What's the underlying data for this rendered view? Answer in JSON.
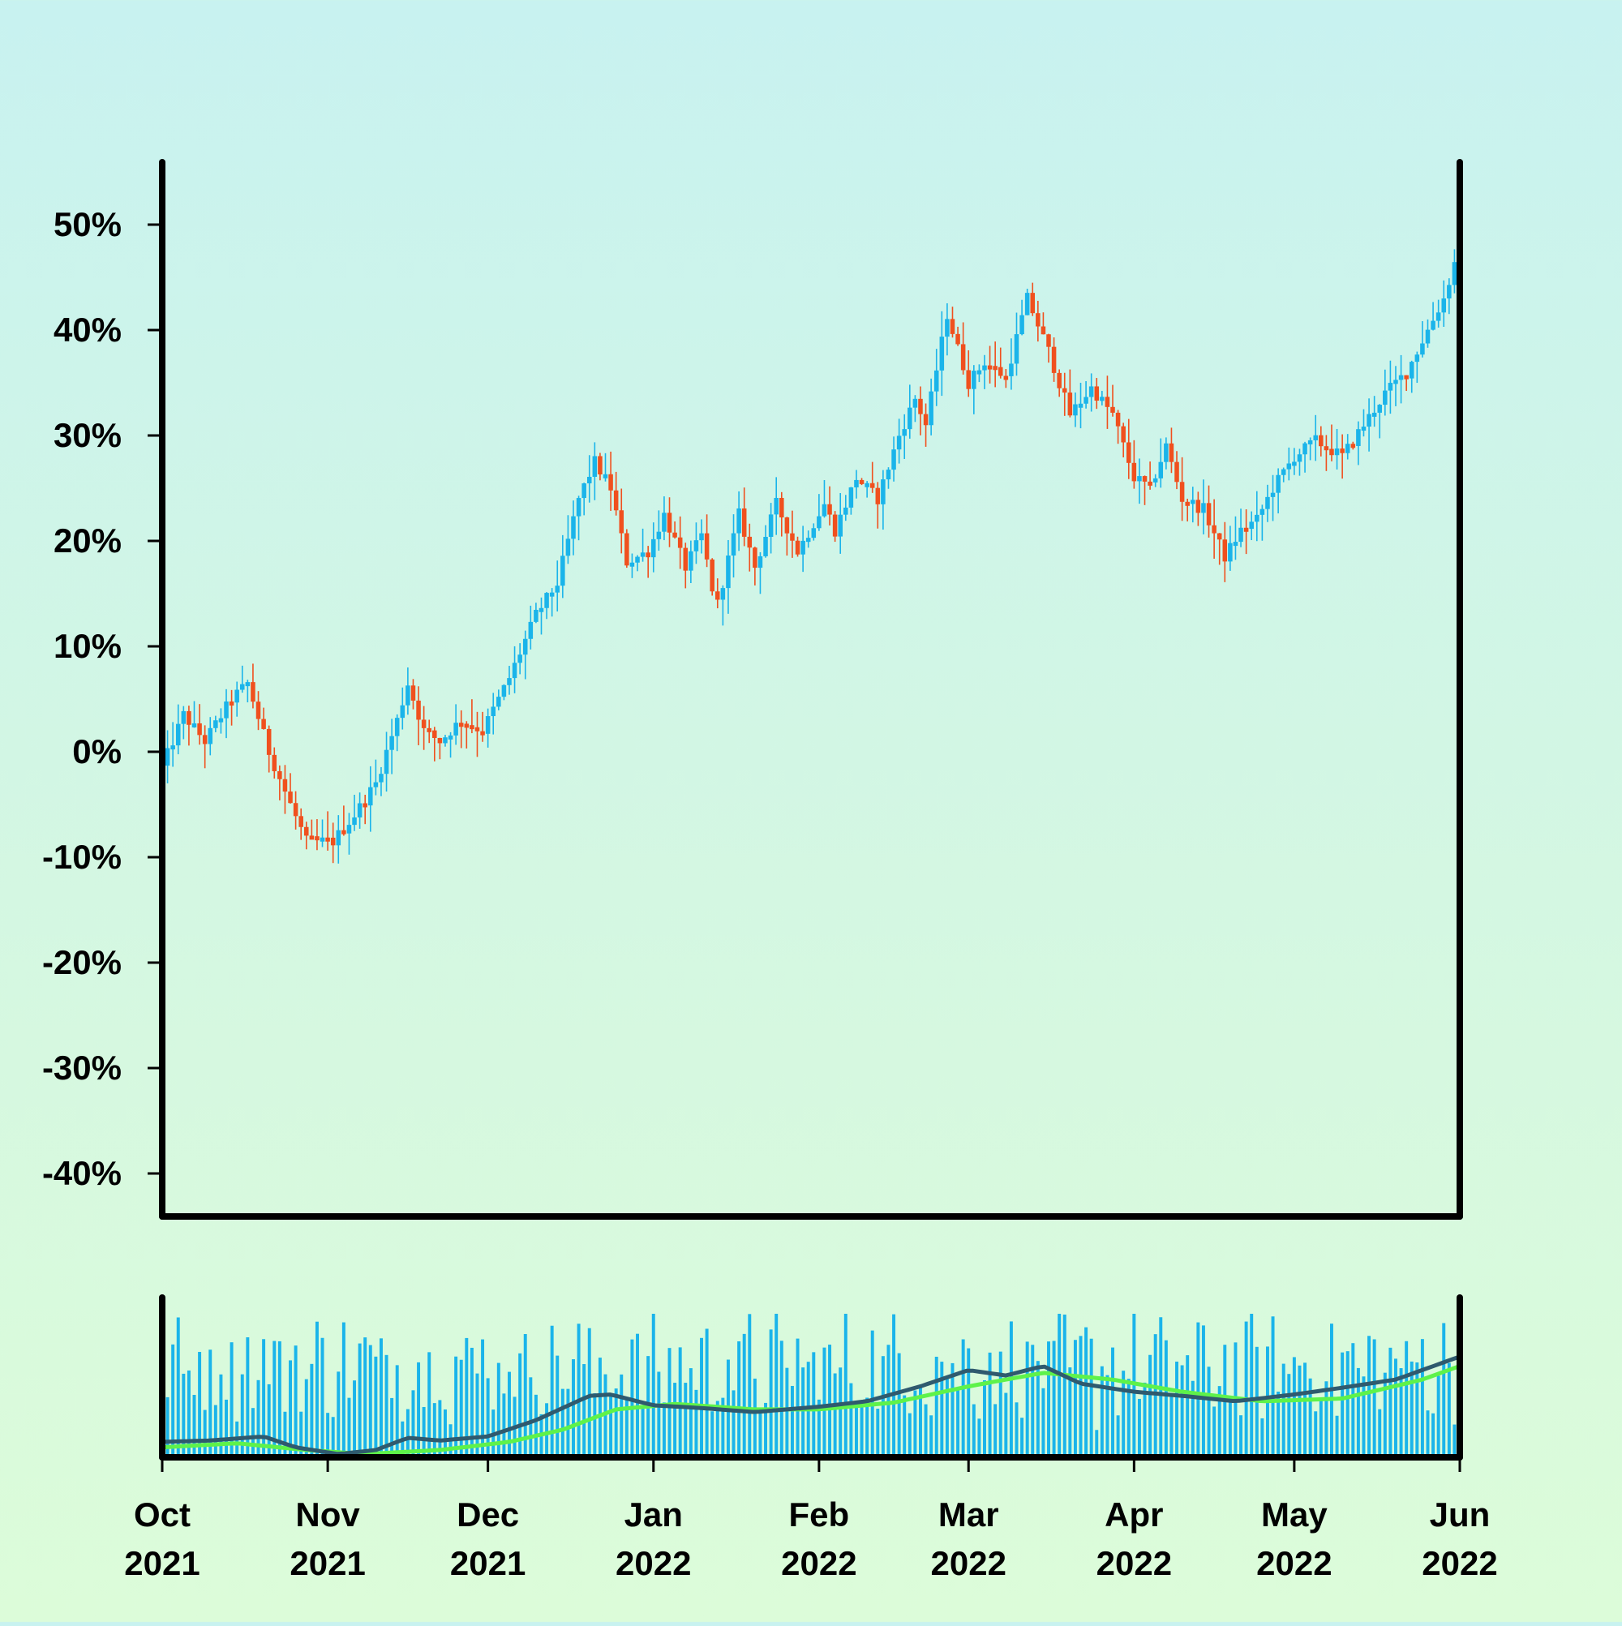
{
  "chart_data": {
    "type": "candlestick",
    "title": "",
    "xlabel": "",
    "ylabel": "",
    "ylim": [
      -45,
      56
    ],
    "ytick_labels": [
      "50%",
      "40%",
      "30%",
      "20%",
      "10%",
      "0%",
      "-10%",
      "-20%",
      "-30%",
      "-40%"
    ],
    "ytick_values": [
      50,
      40,
      30,
      20,
      10,
      0,
      -10,
      -20,
      -30,
      -40
    ],
    "xlim": [
      "2021-10-01",
      "2022-06-01"
    ],
    "xticks": [
      {
        "date": "2021-10-01",
        "month": "Oct",
        "year": "2021"
      },
      {
        "date": "2021-11-01",
        "month": "Nov",
        "year": "2021"
      },
      {
        "date": "2021-12-01",
        "month": "Dec",
        "year": "2021"
      },
      {
        "date": "2022-01-01",
        "month": "Jan",
        "year": "2022"
      },
      {
        "date": "2022-02-01",
        "month": "Feb",
        "year": "2022"
      },
      {
        "date": "2022-03-01",
        "month": "Mar",
        "year": "2022"
      },
      {
        "date": "2022-04-01",
        "month": "Apr",
        "year": "2022"
      },
      {
        "date": "2022-05-01",
        "month": "May",
        "year": "2022"
      },
      {
        "date": "2022-06-01",
        "month": "Jun",
        "year": "2022"
      }
    ],
    "colors": {
      "up": "#1ab4ea",
      "down": "#f0501e",
      "volume": "#1ab4ea",
      "volume_ma_fast": "#2f5a6e",
      "volume_ma_slow": "#5ef24a",
      "axis": "#000000"
    },
    "close_path": [
      [
        "2021-10-01",
        -1.5
      ],
      [
        "2021-10-05",
        3.5
      ],
      [
        "2021-10-09",
        1
      ],
      [
        "2021-10-14",
        5
      ],
      [
        "2021-10-17",
        6.5
      ],
      [
        "2021-10-21",
        0
      ],
      [
        "2021-10-25",
        -5
      ],
      [
        "2021-10-28",
        -8.5
      ],
      [
        "2021-11-02",
        -8.5
      ],
      [
        "2021-11-06",
        -6
      ],
      [
        "2021-11-10",
        -3
      ],
      [
        "2021-11-14",
        3
      ],
      [
        "2021-11-16",
        6.5
      ],
      [
        "2021-11-19",
        2
      ],
      [
        "2021-11-22",
        1
      ],
      [
        "2021-11-26",
        3
      ],
      [
        "2021-11-30",
        2
      ],
      [
        "2021-12-05",
        7
      ],
      [
        "2021-12-10",
        13
      ],
      [
        "2021-12-14",
        16
      ],
      [
        "2021-12-18",
        24
      ],
      [
        "2021-12-21",
        27.5
      ],
      [
        "2021-12-24",
        25
      ],
      [
        "2021-12-27",
        18
      ],
      [
        "2021-12-31",
        19
      ],
      [
        "2022-01-03",
        22.5
      ],
      [
        "2022-01-07",
        17.5
      ],
      [
        "2022-01-10",
        20.5
      ],
      [
        "2022-01-12",
        15.5
      ],
      [
        "2022-01-13",
        14
      ],
      [
        "2022-01-17",
        22.5
      ],
      [
        "2022-01-20",
        17.5
      ],
      [
        "2022-01-24",
        23.5
      ],
      [
        "2022-01-28",
        19
      ],
      [
        "2022-02-02",
        23.5
      ],
      [
        "2022-02-04",
        21
      ],
      [
        "2022-02-08",
        26
      ],
      [
        "2022-02-12",
        24
      ],
      [
        "2022-02-16",
        30
      ],
      [
        "2022-02-19",
        33.5
      ],
      [
        "2022-02-21",
        31
      ],
      [
        "2022-02-25",
        41.5
      ],
      [
        "2022-03-01",
        35
      ],
      [
        "2022-03-04",
        37
      ],
      [
        "2022-03-08",
        35.5
      ],
      [
        "2022-03-12",
        43
      ],
      [
        "2022-03-16",
        38
      ],
      [
        "2022-03-20",
        32
      ],
      [
        "2022-03-24",
        34.5
      ],
      [
        "2022-03-28",
        32
      ],
      [
        "2022-04-01",
        26
      ],
      [
        "2022-04-04",
        25
      ],
      [
        "2022-04-07",
        29
      ],
      [
        "2022-04-10",
        24
      ],
      [
        "2022-04-14",
        23
      ],
      [
        "2022-04-18",
        18.5
      ],
      [
        "2022-04-21",
        21
      ],
      [
        "2022-04-24",
        22
      ],
      [
        "2022-04-27",
        25
      ],
      [
        "2022-05-01",
        28
      ],
      [
        "2022-05-05",
        29.5
      ],
      [
        "2022-05-10",
        28
      ],
      [
        "2022-05-14",
        31
      ],
      [
        "2022-05-18",
        34
      ],
      [
        "2022-05-22",
        36
      ],
      [
        "2022-05-26",
        40
      ],
      [
        "2022-05-29",
        43
      ],
      [
        "2022-06-01",
        48
      ]
    ],
    "volume_ma_fast": [
      [
        "2021-10-01",
        0.09
      ],
      [
        "2021-10-10",
        0.1
      ],
      [
        "2021-10-20",
        0.13
      ],
      [
        "2021-10-26",
        0.05
      ],
      [
        "2021-11-03",
        0.0
      ],
      [
        "2021-11-10",
        0.03
      ],
      [
        "2021-11-16",
        0.12
      ],
      [
        "2021-11-22",
        0.1
      ],
      [
        "2021-12-01",
        0.13
      ],
      [
        "2021-12-10",
        0.25
      ],
      [
        "2021-12-20",
        0.43
      ],
      [
        "2021-12-24",
        0.44
      ],
      [
        "2022-01-01",
        0.36
      ],
      [
        "2022-01-10",
        0.34
      ],
      [
        "2022-01-20",
        0.31
      ],
      [
        "2022-02-01",
        0.35
      ],
      [
        "2022-02-10",
        0.39
      ],
      [
        "2022-02-20",
        0.5
      ],
      [
        "2022-03-01",
        0.62
      ],
      [
        "2022-03-08",
        0.58
      ],
      [
        "2022-03-15",
        0.65
      ],
      [
        "2022-03-22",
        0.52
      ],
      [
        "2022-04-01",
        0.46
      ],
      [
        "2022-04-10",
        0.43
      ],
      [
        "2022-04-20",
        0.39
      ],
      [
        "2022-05-01",
        0.44
      ],
      [
        "2022-05-10",
        0.49
      ],
      [
        "2022-05-20",
        0.55
      ],
      [
        "2022-06-01",
        0.72
      ]
    ],
    "volume_ma_slow": [
      [
        "2021-10-01",
        0.05
      ],
      [
        "2021-10-15",
        0.08
      ],
      [
        "2021-10-28",
        0.03
      ],
      [
        "2021-11-08",
        0.0
      ],
      [
        "2021-11-22",
        0.03
      ],
      [
        "2021-12-05",
        0.09
      ],
      [
        "2021-12-15",
        0.18
      ],
      [
        "2021-12-25",
        0.33
      ],
      [
        "2022-01-05",
        0.37
      ],
      [
        "2022-01-20",
        0.33
      ],
      [
        "2022-02-01",
        0.33
      ],
      [
        "2022-02-15",
        0.38
      ],
      [
        "2022-03-01",
        0.5
      ],
      [
        "2022-03-15",
        0.6
      ],
      [
        "2022-03-28",
        0.55
      ],
      [
        "2022-04-10",
        0.46
      ],
      [
        "2022-04-25",
        0.39
      ],
      [
        "2022-05-10",
        0.41
      ],
      [
        "2022-05-25",
        0.55
      ],
      [
        "2022-06-01",
        0.65
      ]
    ]
  }
}
